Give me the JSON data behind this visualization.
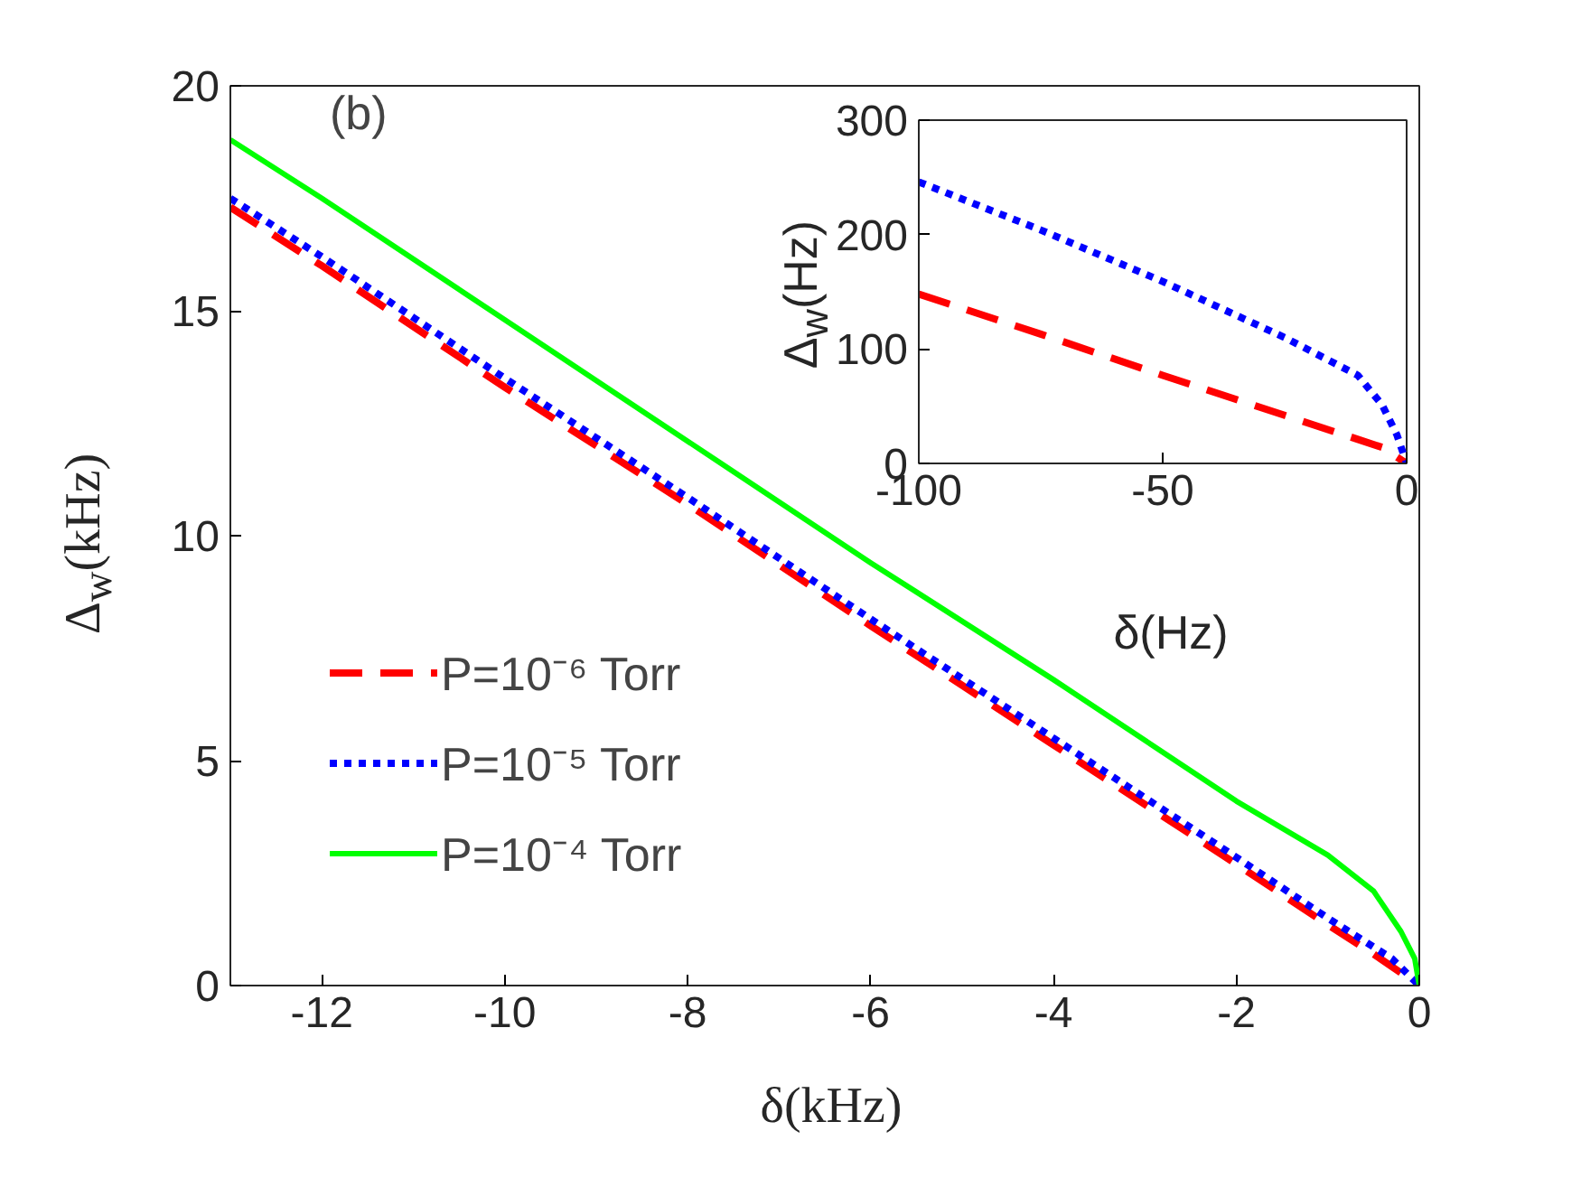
{
  "chart_data": [
    {
      "type": "line",
      "xlabel": "δ(kHz)",
      "ylabel": "Δ$_{w}$(kHz)",
      "annotations": [
        "(b)"
      ],
      "xlim": [
        -13,
        0
      ],
      "ylim": [
        0,
        20
      ],
      "xticks": [
        -12,
        -10,
        -8,
        -6,
        -4,
        -2,
        0
      ],
      "yticks": [
        0,
        5,
        10,
        15,
        20
      ],
      "grid": false,
      "legend": "bottom left",
      "series": [
        {
          "name": "P=10⁻⁶ Torr",
          "color": "#ff0000",
          "line_style": "dashed",
          "x": [
            -13,
            -12,
            -10,
            -8,
            -6,
            -4,
            -2,
            -1,
            -0.5,
            0
          ],
          "values": [
            17.3,
            16.0,
            13.3,
            10.7,
            8.0,
            5.35,
            2.7,
            1.35,
            0.7,
            0
          ]
        },
        {
          "name": "P=10⁻⁵ Torr",
          "color": "#0000ff",
          "line_style": "dotted",
          "x": [
            -13,
            -12,
            -10,
            -8,
            -6,
            -4,
            -2,
            -1,
            -0.3,
            0
          ],
          "values": [
            17.5,
            16.2,
            13.5,
            10.85,
            8.15,
            5.5,
            2.85,
            1.5,
            0.6,
            0
          ]
        },
        {
          "name": "P=10⁻⁴ Torr",
          "color": "#00ff00",
          "line_style": "solid",
          "x": [
            -13,
            -12,
            -10,
            -8,
            -6,
            -4,
            -2,
            -1,
            -0.5,
            -0.2,
            -0.05,
            0
          ],
          "values": [
            18.8,
            17.5,
            14.8,
            12.1,
            9.4,
            6.8,
            4.1,
            2.9,
            2.1,
            1.2,
            0.6,
            0
          ]
        }
      ]
    },
    {
      "type": "line",
      "xlabel": "δ(Hz)",
      "ylabel": "Δ$_{w}$(Hz)",
      "xlim": [
        -100,
        0
      ],
      "ylim": [
        0,
        300
      ],
      "xticks": [
        -100,
        -50,
        0
      ],
      "yticks": [
        0,
        100,
        200,
        300
      ],
      "grid": false,
      "series": [
        {
          "color": "#ff0000",
          "line_style": "dashed",
          "x": [
            -100,
            -75,
            -50,
            -25,
            -10,
            -5,
            0
          ],
          "values": [
            148,
            113,
            77,
            42,
            21,
            14,
            0
          ]
        },
        {
          "color": "#0000ff",
          "line_style": "dotted",
          "x": [
            -100,
            -75,
            -50,
            -25,
            -10,
            -5,
            -2,
            0
          ],
          "values": [
            246,
            204,
            159,
            110,
            77,
            51,
            25,
            0
          ]
        }
      ]
    }
  ]
}
